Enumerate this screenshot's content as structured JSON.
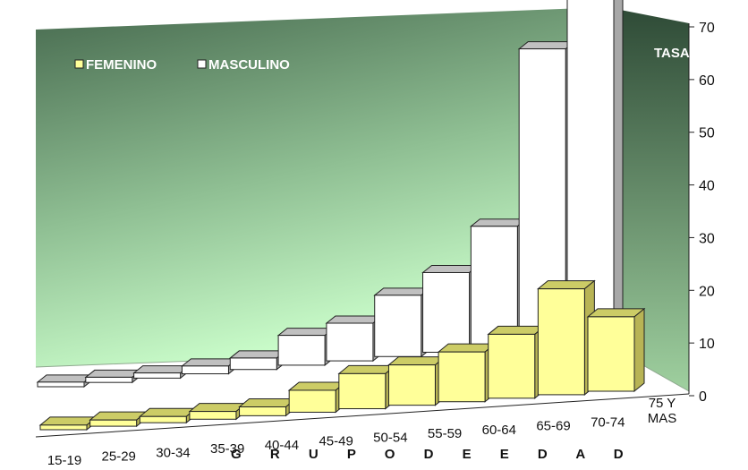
{
  "chart_data": {
    "type": "bar",
    "categories": [
      "15-19",
      "25-29",
      "30-34",
      "35-39",
      "40-44",
      "45-49",
      "50-54",
      "55-59",
      "60-64",
      "65-69",
      "70-74",
      "75 Y\nMAS"
    ],
    "series": [
      {
        "name": "FEMENINO",
        "values": [
          0.2,
          0.5,
          0.5,
          0.8,
          1.0,
          3.5,
          6.0,
          7.0,
          8.8,
          11.5,
          19.5,
          13.5
        ]
      },
      {
        "name": "MASCULINO",
        "values": [
          0.2,
          0.3,
          0.3,
          0.8,
          1.5,
          5.0,
          6.5,
          11.0,
          14.5,
          22.5,
          55.5,
          67.0
        ]
      }
    ],
    "xlabel": "G R U P O   D E   E D A D",
    "ylabel": "TASA",
    "ylim": [
      0,
      70
    ],
    "yticks": [
      0,
      10,
      20,
      30,
      40,
      50,
      60,
      70
    ],
    "grid": false,
    "legend_position": "top-left",
    "colors": {
      "femenino_front": "#ffff99",
      "femenino_top": "#cccc66",
      "femenino_side": "#b8b455",
      "masculino_front": "#ffffff",
      "masculino_top": "#c0c0c0",
      "masculino_side": "#a8a8a8",
      "wall_dark": "#3d5c45",
      "wall_light": "#ccffcc"
    }
  }
}
